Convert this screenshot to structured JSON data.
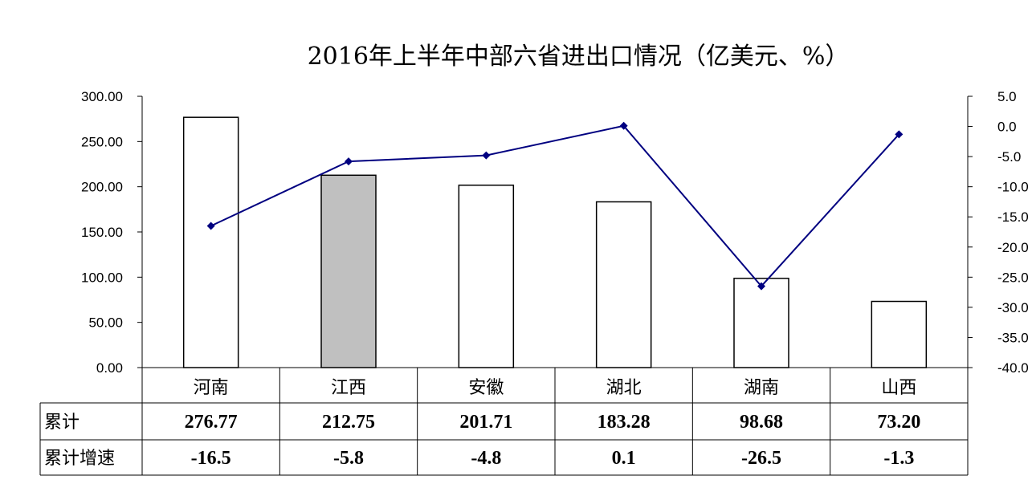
{
  "chart_data": {
    "type": "bar",
    "title": "2016年上半年中部六省进出口情况（亿美元、%）",
    "categories": [
      "河南",
      "江西",
      "安徽",
      "湖北",
      "湖南",
      "山西"
    ],
    "series": [
      {
        "name": "累计",
        "kind": "bar",
        "axis": "left",
        "values": [
          276.77,
          212.75,
          201.71,
          183.28,
          98.68,
          73.2
        ]
      },
      {
        "name": "累计增速",
        "kind": "line",
        "axis": "right",
        "values": [
          -16.5,
          -5.8,
          -4.8,
          0.1,
          -26.5,
          -1.3
        ]
      }
    ],
    "table_rows": [
      {
        "label": "累计",
        "cells": [
          "276.77",
          "212.75",
          "201.71",
          "183.28",
          "98.68",
          "73.20"
        ]
      },
      {
        "label": "累计增速",
        "cells": [
          "-16.5",
          "-5.8",
          "-4.8",
          "0.1",
          "-26.5",
          "-1.3"
        ]
      }
    ],
    "y_left": {
      "range": [
        0,
        300
      ],
      "ticks": [
        "0.00",
        "50.00",
        "100.00",
        "150.00",
        "200.00",
        "250.00",
        "300.00"
      ]
    },
    "y_right": {
      "range": [
        -40,
        5
      ],
      "ticks": [
        "-40.0",
        "-35.0",
        "-30.0",
        "-25.0",
        "-20.0",
        "-15.0",
        "-10.0",
        "-5.0",
        "0.0",
        "5.0"
      ]
    },
    "highlight_index": 1,
    "grid": false,
    "colors": {
      "bar_fill": "#ffffff",
      "bar_highlight": "#c0c0c0",
      "bar_stroke": "#000000",
      "line": "#000080",
      "marker": "#000080"
    }
  }
}
